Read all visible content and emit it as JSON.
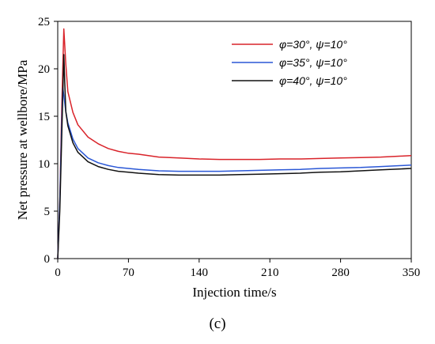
{
  "chart_data": {
    "type": "line",
    "xlabel": "Injection time/s",
    "ylabel": "Net pressure at wellbore/MPa",
    "xlim": [
      0,
      350
    ],
    "ylim": [
      0,
      25
    ],
    "xticks": [
      0,
      70,
      140,
      210,
      280,
      350
    ],
    "yticks": [
      0,
      5,
      10,
      15,
      20,
      25
    ],
    "grid": false,
    "legend_position": "top-right",
    "caption": "(c)",
    "series": [
      {
        "name": "φ=30°, ψ=10°",
        "color": "#d9232a",
        "x": [
          0,
          2,
          4,
          6,
          8,
          10,
          15,
          20,
          30,
          40,
          50,
          60,
          70,
          80,
          100,
          120,
          140,
          160,
          180,
          200,
          220,
          240,
          260,
          280,
          300,
          320,
          340,
          350
        ],
        "y": [
          0,
          6,
          16,
          24.2,
          20.5,
          17.6,
          15.4,
          14.1,
          12.8,
          12.1,
          11.6,
          11.3,
          11.1,
          11.0,
          10.7,
          10.6,
          10.5,
          10.45,
          10.45,
          10.45,
          10.5,
          10.5,
          10.55,
          10.6,
          10.65,
          10.7,
          10.8,
          10.85
        ]
      },
      {
        "name": "φ=35°, ψ=10°",
        "color": "#2a57d6",
        "x": [
          0,
          2,
          4,
          5,
          6,
          8,
          10,
          15,
          20,
          30,
          40,
          50,
          60,
          70,
          80,
          100,
          120,
          140,
          160,
          180,
          200,
          220,
          240,
          260,
          280,
          300,
          320,
          340,
          350
        ],
        "y": [
          0,
          6,
          14.5,
          18.0,
          17.2,
          15.5,
          14.3,
          12.6,
          11.6,
          10.6,
          10.1,
          9.8,
          9.6,
          9.5,
          9.4,
          9.25,
          9.2,
          9.2,
          9.2,
          9.25,
          9.3,
          9.35,
          9.4,
          9.5,
          9.55,
          9.6,
          9.7,
          9.8,
          9.85
        ]
      },
      {
        "name": "φ=40°, ψ=10°",
        "color": "#111111",
        "x": [
          0,
          2,
          4,
          6,
          7,
          8,
          10,
          15,
          20,
          30,
          40,
          50,
          60,
          70,
          80,
          100,
          120,
          140,
          160,
          180,
          200,
          220,
          240,
          260,
          280,
          300,
          320,
          340,
          350
        ],
        "y": [
          0,
          5,
          13,
          21.5,
          18.5,
          15.5,
          14.0,
          12.2,
          11.2,
          10.2,
          9.7,
          9.4,
          9.2,
          9.1,
          9.0,
          8.85,
          8.8,
          8.8,
          8.8,
          8.85,
          8.9,
          8.95,
          9.0,
          9.1,
          9.15,
          9.25,
          9.35,
          9.45,
          9.5
        ]
      }
    ]
  }
}
